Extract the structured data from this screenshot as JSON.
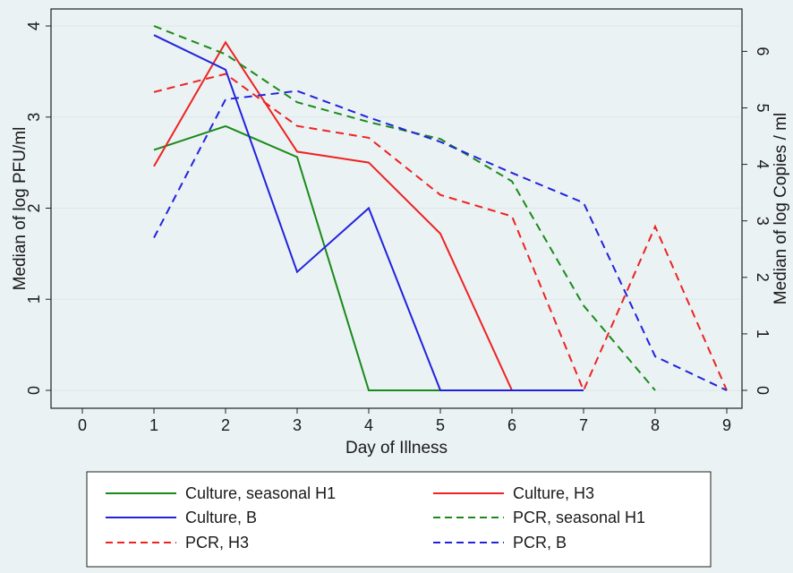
{
  "chart_data": {
    "type": "line",
    "title": "",
    "xlabel": "Day of Illness",
    "ylabel_left": "Median of log PFU/ml",
    "ylabel_right": "Median of log Copies / ml",
    "x_ticks": [
      "0",
      "1",
      "2",
      "3",
      "4",
      "5",
      "6",
      "7",
      "8",
      "9"
    ],
    "y_left_ticks": [
      "0",
      "1",
      "2",
      "3",
      "4"
    ],
    "y_right_ticks": [
      "0",
      "1",
      "2",
      "3",
      "4",
      "5",
      "6"
    ],
    "xlim": [
      0,
      9
    ],
    "ylim_left": [
      0,
      4
    ],
    "ylim_right": [
      0,
      6.45
    ],
    "grid": true,
    "legend_position": "bottom",
    "series": [
      {
        "name": "Culture, seasonal H1",
        "axis": "left",
        "color": "#1a8a1a",
        "dashed": false,
        "x": [
          1,
          2,
          3,
          4,
          5,
          6,
          7
        ],
        "y": [
          2.64,
          2.9,
          2.56,
          0,
          0,
          0,
          0
        ]
      },
      {
        "name": "Culture, H3",
        "axis": "left",
        "color": "#ee2222",
        "dashed": false,
        "x": [
          1,
          2,
          3,
          4,
          5,
          6,
          7
        ],
        "y": [
          2.46,
          3.82,
          2.62,
          2.5,
          1.72,
          0,
          0
        ]
      },
      {
        "name": "Culture, B",
        "axis": "left",
        "color": "#2222dd",
        "dashed": false,
        "x": [
          1,
          2,
          3,
          4,
          5,
          6,
          7
        ],
        "y": [
          3.9,
          3.52,
          1.3,
          2.0,
          0,
          0,
          0
        ]
      },
      {
        "name": "PCR, seasonal H1",
        "axis": "right",
        "color": "#1a8a1a",
        "dashed": true,
        "x": [
          1,
          2,
          3,
          4,
          5,
          6,
          7,
          8
        ],
        "y": [
          6.45,
          5.95,
          5.1,
          4.75,
          4.45,
          3.7,
          1.5,
          0
        ]
      },
      {
        "name": "PCR, H3",
        "axis": "right",
        "color": "#ee2222",
        "dashed": true,
        "x": [
          1,
          2,
          3,
          4,
          5,
          6,
          7,
          8,
          9
        ],
        "y": [
          5.28,
          5.6,
          4.68,
          4.47,
          3.46,
          3.08,
          0,
          2.9,
          0
        ]
      },
      {
        "name": "PCR, B",
        "axis": "right",
        "color": "#2222dd",
        "dashed": true,
        "x": [
          1,
          2,
          3,
          4,
          5,
          6,
          7,
          8,
          9
        ],
        "y": [
          2.7,
          5.15,
          5.3,
          4.83,
          4.4,
          3.85,
          3.32,
          0.6,
          0
        ]
      }
    ]
  }
}
